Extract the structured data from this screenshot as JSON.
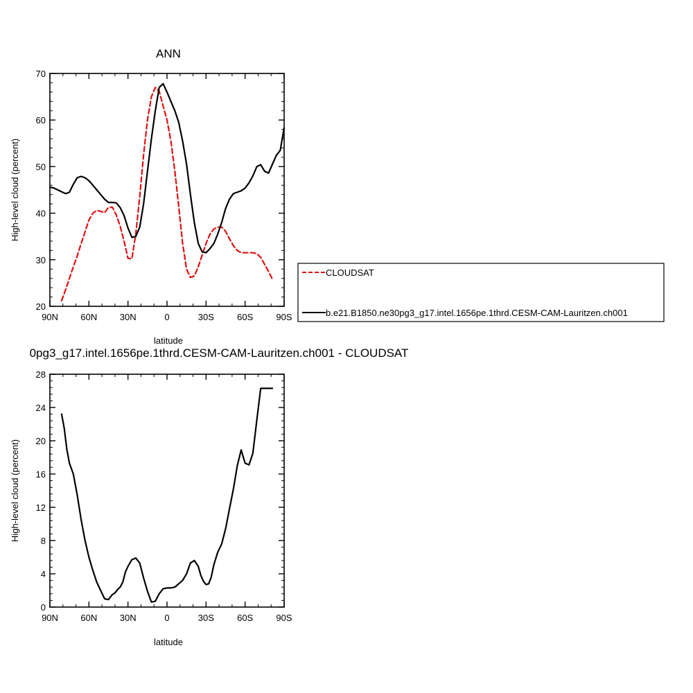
{
  "chart_data": [
    {
      "type": "line",
      "title": "ANN",
      "xlabel": "latitude",
      "ylabel": "High-level cloud (percent)",
      "xlim": [
        -90,
        90
      ],
      "ylim": [
        20,
        70
      ],
      "x_ticks": [
        -90,
        -60,
        -30,
        0,
        30,
        60,
        90
      ],
      "x_tick_labels": [
        "90N",
        "60N",
        "30N",
        "0",
        "30S",
        "60S",
        "90S"
      ],
      "y_ticks": [
        20,
        30,
        40,
        50,
        60,
        70
      ],
      "y_tick_labels": [
        "20",
        "30",
        "40",
        "50",
        "60",
        "70"
      ],
      "legend_position": "right",
      "series": [
        {
          "name": "CLOUDSAT",
          "color": "#e01010",
          "dash": "dashed",
          "x": [
            -81,
            -78,
            -75,
            -72,
            -69,
            -66,
            -63,
            -60,
            -57,
            -54,
            -51,
            -48,
            -45,
            -42,
            -39,
            -36,
            -33,
            -30,
            -27,
            -24,
            -21,
            -18,
            -15,
            -12,
            -9,
            -6,
            -3,
            0,
            3,
            6,
            9,
            12,
            15,
            18,
            21,
            24,
            27,
            30,
            33,
            36,
            39,
            42,
            45,
            48,
            51,
            54,
            57,
            60,
            63,
            66,
            69,
            72,
            75,
            78,
            81
          ],
          "y": [
            21.2,
            23.5,
            26,
            28.5,
            30.8,
            33.5,
            36,
            38.5,
            40,
            40.6,
            40.4,
            40.1,
            41.2,
            41.3,
            39.6,
            37.2,
            34,
            30.3,
            30.2,
            35.5,
            43.5,
            52.5,
            60,
            65,
            67,
            66.2,
            63,
            60,
            55.5,
            49,
            41.5,
            33.5,
            28,
            26.2,
            26.5,
            28.5,
            31,
            33.5,
            35.5,
            36.6,
            37,
            37,
            36.1,
            34.5,
            33,
            32,
            31.5,
            31.5,
            31.5,
            31.5,
            31.3,
            30.5,
            29,
            27.5,
            25.8
          ]
        },
        {
          "name": "b.e21.B1850.ne30pg3_g17.intel.1656pe.1thrd.CESM-CAM-Lauritzen.ch001",
          "color": "#000000",
          "dash": "solid",
          "x": [
            -90,
            -87,
            -84,
            -81,
            -78,
            -75,
            -72,
            -69,
            -66,
            -63,
            -60,
            -57,
            -54,
            -51,
            -48,
            -45,
            -42,
            -39,
            -36,
            -33,
            -30,
            -27,
            -24,
            -21,
            -18,
            -15,
            -12,
            -9,
            -6,
            -3,
            0,
            3,
            6,
            9,
            12,
            15,
            18,
            21,
            24,
            27,
            30,
            33,
            36,
            39,
            42,
            45,
            48,
            51,
            54,
            57,
            60,
            63,
            66,
            69,
            72,
            75,
            78,
            81,
            84,
            87,
            90
          ],
          "y": [
            45.6,
            45.4,
            45,
            44.6,
            44.2,
            44.5,
            46.2,
            47.6,
            47.9,
            47.6,
            47,
            46,
            45,
            44,
            43,
            42.3,
            42.3,
            42.2,
            41.2,
            39.5,
            36.8,
            34.8,
            35,
            37,
            42,
            49,
            56,
            62,
            67,
            67.8,
            66,
            64,
            62,
            59.5,
            55.5,
            50.5,
            44,
            38,
            33.5,
            31.7,
            31.5,
            32.4,
            33.5,
            35.5,
            38,
            41,
            43,
            44.2,
            44.5,
            44.8,
            45.4,
            46.5,
            48,
            50,
            50.4,
            49,
            48.6,
            50.5,
            52.4,
            53.5,
            58.3
          ]
        }
      ]
    },
    {
      "type": "line",
      "title": "0pg3_g17.intel.1656pe.1thrd.CESM-CAM-Lauritzen.ch001 - CLOUDSAT",
      "xlabel": "latitude",
      "ylabel": "High-level cloud (percent)",
      "xlim": [
        -90,
        90
      ],
      "ylim": [
        0,
        28
      ],
      "x_ticks": [
        -90,
        -60,
        -30,
        0,
        30,
        60,
        90
      ],
      "x_tick_labels": [
        "90N",
        "60N",
        "30N",
        "0",
        "30S",
        "60S",
        "90S"
      ],
      "y_ticks": [
        0,
        4,
        8,
        12,
        16,
        20,
        24,
        28
      ],
      "y_tick_labels": [
        "0",
        "4",
        "8",
        "12",
        "16",
        "20",
        "24",
        "28"
      ],
      "series": [
        {
          "color": "#000000",
          "dash": "solid",
          "x": [
            -81,
            -79,
            -77,
            -75,
            -72,
            -69,
            -66,
            -63,
            -60,
            -57,
            -54,
            -51,
            -48,
            -45,
            -42,
            -40,
            -38,
            -36,
            -34,
            -32,
            -30,
            -27,
            -24,
            -21,
            -18,
            -15,
            -12,
            -9,
            -6,
            -3,
            0,
            3,
            6,
            9,
            12,
            15,
            18,
            21,
            24,
            26,
            28,
            30,
            32,
            34,
            36,
            39,
            42,
            45,
            48,
            51,
            54,
            57,
            60,
            63,
            66,
            69,
            72,
            75,
            78,
            81
          ],
          "y": [
            23.2,
            21.5,
            19,
            17.3,
            16,
            13.5,
            10.5,
            8,
            6,
            4.4,
            3,
            2,
            1,
            0.9,
            1.5,
            1.7,
            2.1,
            2.4,
            3,
            4.2,
            4.9,
            5.7,
            5.9,
            5.3,
            3.5,
            1.9,
            0.6,
            0.7,
            1.6,
            2.2,
            2.3,
            2.3,
            2.4,
            2.8,
            3.2,
            4,
            5.3,
            5.6,
            4.9,
            3.8,
            3.1,
            2.7,
            2.8,
            3.6,
            5.1,
            6.6,
            7.6,
            9.4,
            11.8,
            14.2,
            17,
            18.9,
            17.3,
            17.1,
            18.5,
            22.5,
            26.3,
            26.3,
            26.3,
            26.3
          ]
        }
      ]
    }
  ]
}
